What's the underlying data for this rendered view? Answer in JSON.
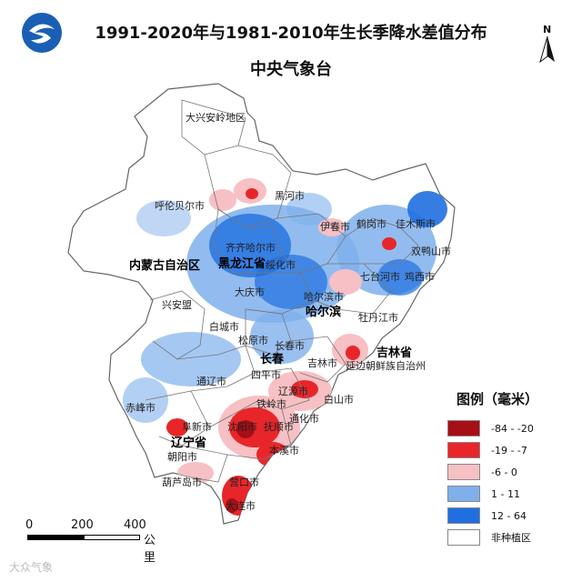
{
  "title": "1991-2020年与1981-2010年生长季降水差值分布",
  "subtitle": "中央气象台",
  "north_label": "N",
  "legend": {
    "title": "图例（毫米）",
    "items": [
      {
        "label": "-84 - -20",
        "color": "#a50f15"
      },
      {
        "label": "-19 - -7",
        "color": "#e8262a"
      },
      {
        "label": "-6 - 0",
        "color": "#f7c0c4"
      },
      {
        "label": "1 - 11",
        "color": "#7fb0ec"
      },
      {
        "label": "12 - 64",
        "color": "#1f6fe0"
      },
      {
        "label": "非种植区",
        "color": "#ffffff"
      }
    ]
  },
  "scale_bar": {
    "ticks": [
      "0",
      "200",
      "400"
    ],
    "unit": "公里"
  },
  "regions": {
    "daxinganling": "大兴安岭地区",
    "hulunbeier": "呼伦贝尔市",
    "heihe": "黑河市",
    "yichun": "伊春市",
    "hegang": "鹤岗市",
    "jiamusi": "佳木斯市",
    "shuangyashan": "双鸭山市",
    "qiqihaer": "齐齐哈尔市",
    "suihua": "绥化市",
    "qitaihe": "七台河市",
    "jixi": "鸡西市",
    "neimenggu": "内蒙古自治区",
    "heilongjiang": "黑龙江省",
    "haerbin_city": "哈尔滨市",
    "haerbin": "哈尔滨",
    "daqing": "大庆市",
    "xinganmeng": "兴安盟",
    "mudanjiang": "牡丹江市",
    "baicheng": "白城市",
    "songyuan": "松原市",
    "changchun_city": "长春市",
    "changchun": "长春",
    "jilin_city": "吉林市",
    "jilin": "吉林省",
    "yanbian": "延边朝鲜族自治州",
    "tongliao": "通辽市",
    "siping": "四平市",
    "liaoyuan": "辽源市",
    "baishan": "白山市",
    "tonghua": "通化市",
    "tieling": "铁岭市",
    "chifeng": "赤峰市",
    "fuxin": "阜新市",
    "shenyang": "沈阳市",
    "fushun": "抚顺市",
    "liaoning": "辽宁省",
    "chaoyang": "朝阳市",
    "benxi": "本溪市",
    "huludao": "葫芦岛市",
    "yingkou": "营口市",
    "dalian": "大连市"
  },
  "watermark": "大众气象"
}
